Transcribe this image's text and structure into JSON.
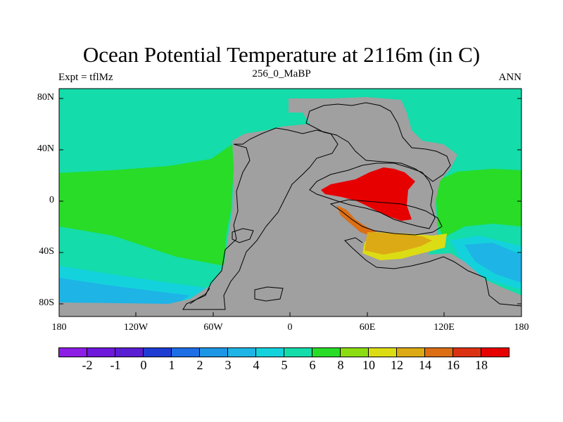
{
  "title": "Ocean Potential Temperature at 2116m (in C)",
  "subtitle_left": "Expt = tflMz",
  "subtitle_center": "256_0_MaBP",
  "subtitle_right": "ANN",
  "y_ticks": [
    "80N",
    "40N",
    "0",
    "40S",
    "80S"
  ],
  "x_ticks": [
    "180",
    "120W",
    "60W",
    "0",
    "60E",
    "120E",
    "180"
  ],
  "colorbar": {
    "colors": [
      "#8c1ee6",
      "#6e18dc",
      "#5a1ed2",
      "#1e3cd2",
      "#1e6ee6",
      "#1e96e6",
      "#1eb4e6",
      "#14d2dc",
      "#14dcaa",
      "#28dc28",
      "#8cdc14",
      "#dcdc14",
      "#dcaa14",
      "#dc6e14",
      "#dc3214",
      "#e60000"
    ],
    "labels": [
      "-2",
      "-1",
      "0",
      "1",
      "2",
      "3",
      "4",
      "5",
      "6",
      "8",
      "10",
      "12",
      "14",
      "16",
      "18"
    ]
  },
  "legend_colors": {
    "land": "#a0a0a0",
    "c5": "#14dcaa",
    "c6": "#28dc28",
    "c3": "#1eb4e6",
    "c4": "#14d2dc",
    "c12": "#dcdc14",
    "c14": "#dcaa14",
    "c16": "#dc6e14",
    "c18": "#e60000"
  }
}
